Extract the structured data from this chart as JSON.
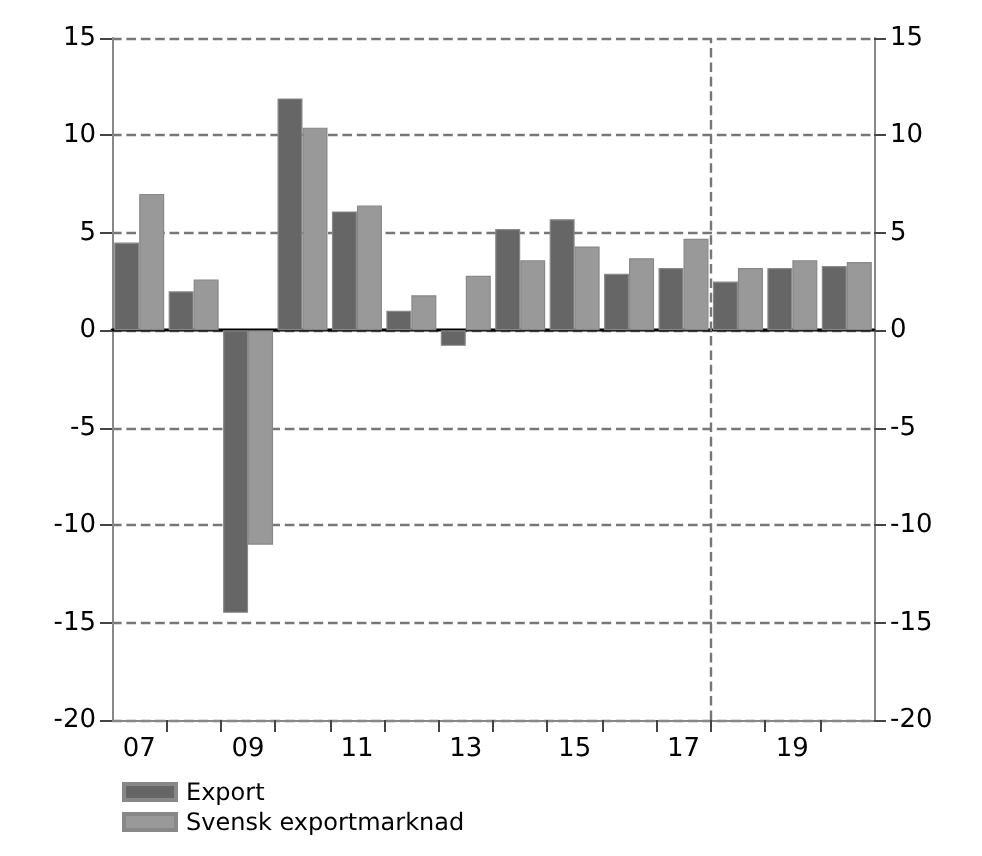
{
  "chart_data": {
    "type": "bar",
    "x": [
      2007,
      2008,
      2009,
      2010,
      2011,
      2012,
      2013,
      2014,
      2015,
      2016,
      2017,
      2018,
      2019,
      2020
    ],
    "series": [
      {
        "name": "Export",
        "color": "#666666",
        "values": [
          4.5,
          2.0,
          -14.5,
          11.9,
          6.1,
          1.0,
          -0.8,
          5.2,
          5.7,
          2.9,
          3.2,
          2.5,
          3.2,
          3.3
        ]
      },
      {
        "name": "Svensk exportmarknad",
        "color": "#999999",
        "values": [
          7.0,
          2.6,
          -11.0,
          10.4,
          6.4,
          1.8,
          2.8,
          3.6,
          4.3,
          3.7,
          4.7,
          3.2,
          3.6,
          3.5
        ]
      }
    ],
    "xlim": [
      2006.5,
      2020.5
    ],
    "xticks": [
      {
        "value": 2007,
        "label": "07"
      },
      {
        "value": 2009,
        "label": "09"
      },
      {
        "value": 2011,
        "label": "11"
      },
      {
        "value": 2013,
        "label": "13"
      },
      {
        "value": 2015,
        "label": "15"
      },
      {
        "value": 2017,
        "label": "17"
      },
      {
        "value": 2019,
        "label": "19"
      },
      {
        "value": 2007.5,
        "label": null
      },
      {
        "value": 2008.5,
        "label": null
      },
      {
        "value": 2009.5,
        "label": null
      },
      {
        "value": 2010.5,
        "label": null
      },
      {
        "value": 2011.5,
        "label": null
      },
      {
        "value": 2012.5,
        "label": null
      },
      {
        "value": 2013.5,
        "label": null
      },
      {
        "value": 2014.5,
        "label": null
      },
      {
        "value": 2015.5,
        "label": null
      },
      {
        "value": 2016.5,
        "label": null
      },
      {
        "value": 2017.5,
        "label": null
      },
      {
        "value": 2018.5,
        "label": null
      },
      {
        "value": 2019.5,
        "label": null
      }
    ],
    "ylim": [
      -20,
      15
    ],
    "yticks": [
      -20,
      -15,
      -10,
      -5,
      0,
      5,
      10,
      15
    ],
    "y2lim": [
      -20,
      15
    ],
    "y2ticks": [
      -20,
      -15,
      -10,
      -5,
      0,
      5,
      10,
      15
    ],
    "ref_lines": [
      {
        "axis": "x",
        "value": 2017.5,
        "color": "#777777",
        "line_style": "dashed"
      }
    ],
    "grid": "y",
    "legend": "bottom left"
  }
}
